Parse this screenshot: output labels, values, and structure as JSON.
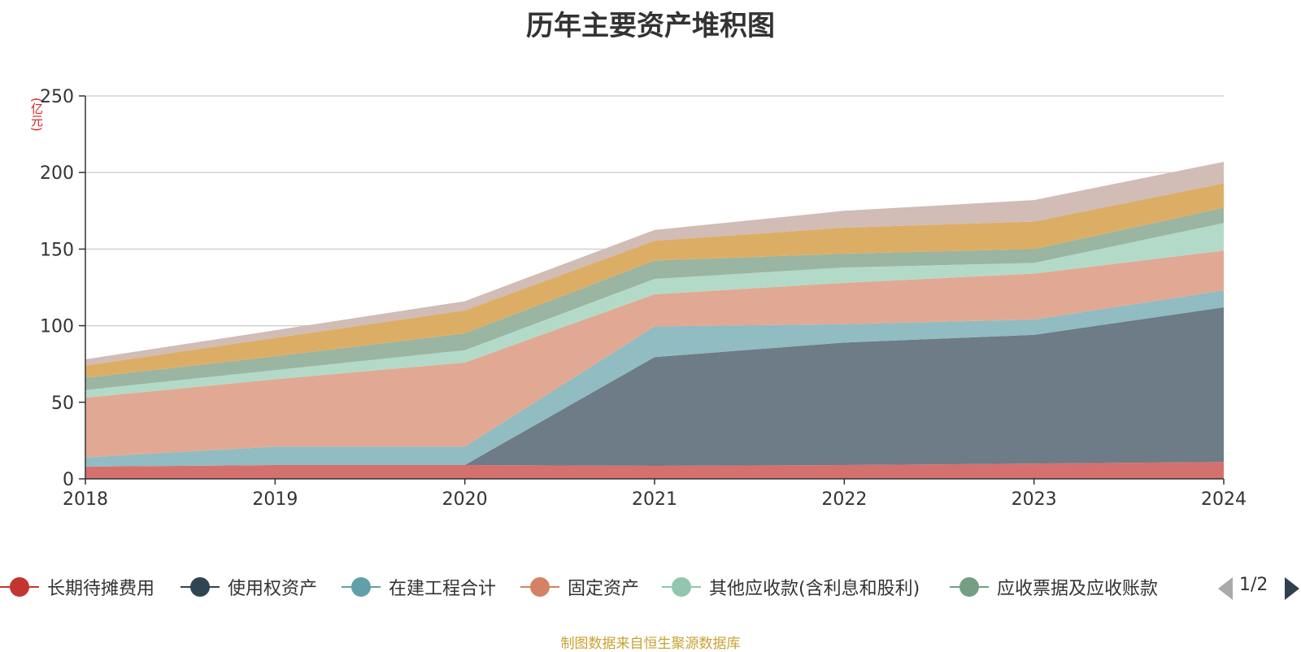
{
  "chart_data": {
    "type": "area",
    "stacked": true,
    "title": "历年主要资产堆积图",
    "unit_label": "(亿元)",
    "x": [
      "2018",
      "2019",
      "2020",
      "2021",
      "2022",
      "2023",
      "2024"
    ],
    "ylim": [
      0,
      250
    ],
    "yticks": [
      "0",
      "50",
      "100",
      "150",
      "200",
      "250"
    ],
    "grid": true,
    "legend_position": "bottom",
    "legend_page": "1/2",
    "source": "制图数据来自恒生聚源数据库",
    "series": [
      {
        "name": "长期待摊费用",
        "color": "#c23531",
        "fill": "#d4716e",
        "values": [
          8,
          9,
          9,
          8.5,
          9,
          10,
          11
        ]
      },
      {
        "name": "使用权资产",
        "color": "#2f4554",
        "fill": "#6d7c87",
        "values": [
          0,
          0,
          0,
          71,
          80,
          84,
          101
        ]
      },
      {
        "name": "在建工程合计",
        "color": "#61a0a8",
        "fill": "#90bcc2",
        "values": [
          6,
          12,
          12,
          20,
          12,
          10,
          11
        ]
      },
      {
        "name": "固定资产",
        "color": "#d48265",
        "fill": "#e1a994",
        "values": [
          39,
          44,
          55,
          21,
          27,
          30,
          26
        ]
      },
      {
        "name": "其他应收款(含利息和股利)",
        "color": "#91c7ae",
        "fill": "#b3dac8",
        "values": [
          5,
          6,
          8,
          10,
          10,
          7,
          18
        ]
      },
      {
        "name": "应收票据及应收账款",
        "color": "#749f83",
        "fill": "#9ab5a1",
        "values": [
          8,
          9,
          11,
          12,
          9,
          9,
          10
        ]
      },
      {
        "name": "",
        "color": "#ca8622",
        "fill": "#dcae65",
        "values": [
          8,
          12,
          15,
          13,
          17,
          18,
          16
        ]
      },
      {
        "name": "",
        "color": "#bda29a",
        "fill": "#d1bcb6",
        "values": [
          4,
          5,
          6,
          7,
          11,
          14,
          14
        ]
      }
    ]
  }
}
